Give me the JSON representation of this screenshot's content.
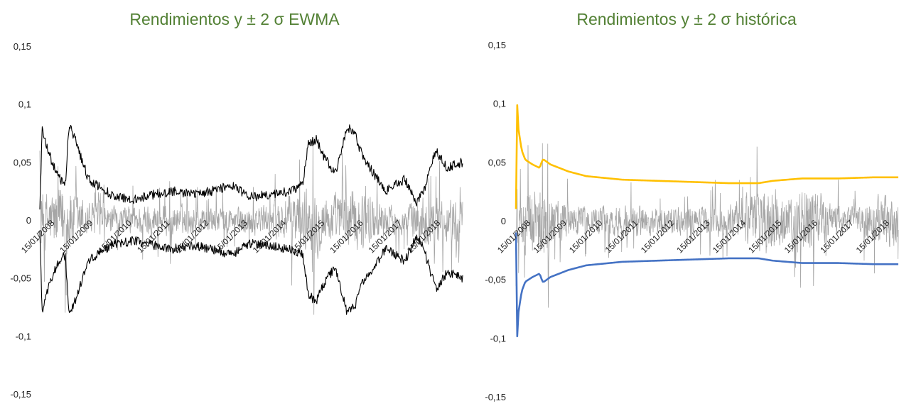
{
  "chart_data": [
    {
      "type": "line",
      "title": "Rendimientos y ± 2 σ EWMA",
      "y_ticks": [
        "0,15",
        "0,1",
        "0,05",
        "0",
        "-0,05",
        "-0,1",
        "-0,15"
      ],
      "y_tick_values": [
        0.15,
        0.1,
        0.05,
        0,
        -0.05,
        -0.1,
        -0.15
      ],
      "ylim": [
        -0.15,
        0.15
      ],
      "x_ticks": [
        "15/01/2008",
        "15/01/2009",
        "15/01/2010",
        "15/01/2011",
        "15/01/2012",
        "15/01/2013",
        "15/01/2014",
        "15/01/2015",
        "15/01/2016",
        "15/01/2017",
        "15/01/2018"
      ],
      "x_tick_years": [
        2008.04,
        2009.04,
        2010.04,
        2011.04,
        2012.04,
        2013.04,
        2014.04,
        2015.04,
        2016.04,
        2017.04,
        2018.04
      ],
      "xlim": [
        2008.04,
        2019.0
      ],
      "grid": false,
      "series": [
        {
          "role": "returns",
          "color": "#a6a6a6",
          "envelope": {
            "x": [
              2008.04,
              2008.3,
              2008.75,
              2009.2,
              2010.0,
              2011.0,
              2012.0,
              2013.0,
              2014.0,
              2014.9,
              2015.2,
              2015.6,
              2016.0,
              2016.5,
              2017.0,
              2017.5,
              2018.0,
              2018.5,
              2019.0
            ],
            "amp": [
              0.05,
              0.045,
              0.06,
              0.03,
              0.02,
              0.025,
              0.022,
              0.02,
              0.025,
              0.05,
              0.055,
              0.035,
              0.055,
              0.04,
              0.025,
              0.02,
              0.04,
              0.035,
              0.035
            ]
          }
        },
        {
          "role": "upper_2sigma_ewma",
          "color": "#000000",
          "x": [
            2008.04,
            2008.1,
            2008.3,
            2008.5,
            2008.7,
            2008.8,
            2009.0,
            2009.3,
            2009.6,
            2010.0,
            2010.5,
            2011.0,
            2011.5,
            2012.0,
            2012.5,
            2013.0,
            2013.5,
            2014.0,
            2014.5,
            2014.85,
            2015.0,
            2015.2,
            2015.4,
            2015.7,
            2016.0,
            2016.2,
            2016.4,
            2016.6,
            2017.0,
            2017.5,
            2017.8,
            2018.0,
            2018.3,
            2018.6,
            2019.0
          ],
          "y": [
            0.008,
            0.078,
            0.055,
            0.038,
            0.03,
            0.083,
            0.065,
            0.035,
            0.028,
            0.02,
            0.018,
            0.022,
            0.025,
            0.022,
            0.025,
            0.03,
            0.02,
            0.022,
            0.025,
            0.03,
            0.065,
            0.07,
            0.055,
            0.04,
            0.08,
            0.075,
            0.055,
            0.045,
            0.025,
            0.035,
            0.015,
            0.025,
            0.06,
            0.045,
            0.05
          ]
        },
        {
          "role": "lower_2sigma_ewma",
          "color": "#000000",
          "x": [
            2008.04,
            2008.1,
            2008.3,
            2008.5,
            2008.7,
            2008.8,
            2009.0,
            2009.3,
            2009.6,
            2010.0,
            2010.5,
            2011.0,
            2011.5,
            2012.0,
            2012.5,
            2013.0,
            2013.5,
            2014.0,
            2014.5,
            2014.85,
            2015.0,
            2015.2,
            2015.4,
            2015.7,
            2016.0,
            2016.2,
            2016.4,
            2016.6,
            2017.0,
            2017.5,
            2017.8,
            2018.0,
            2018.3,
            2018.6,
            2019.0
          ],
          "y": [
            -0.008,
            -0.078,
            -0.055,
            -0.038,
            -0.03,
            -0.083,
            -0.065,
            -0.035,
            -0.028,
            -0.02,
            -0.018,
            -0.022,
            -0.025,
            -0.022,
            -0.025,
            -0.03,
            -0.02,
            -0.022,
            -0.025,
            -0.03,
            -0.065,
            -0.07,
            -0.055,
            -0.04,
            -0.08,
            -0.075,
            -0.055,
            -0.045,
            -0.025,
            -0.035,
            -0.015,
            -0.025,
            -0.06,
            -0.045,
            -0.05
          ]
        }
      ]
    },
    {
      "type": "line",
      "title": "Rendimientos y ± 2 σ histórica",
      "y_ticks": [
        "0,15",
        "0,1",
        "0,05",
        "0",
        "-0,05",
        "-0,1",
        "-0,15"
      ],
      "y_tick_values": [
        0.15,
        0.1,
        0.05,
        0,
        -0.05,
        -0.1,
        -0.15
      ],
      "ylim": [
        -0.15,
        0.15
      ],
      "x_ticks": [
        "15/01/2008",
        "15/01/2009",
        "15/01/2010",
        "15/01/2011",
        "15/01/2012",
        "15/01/2013",
        "15/01/2014",
        "15/01/2015",
        "15/01/2016",
        "15/01/2017",
        "15/01/2018"
      ],
      "x_tick_years": [
        2008.04,
        2009.04,
        2010.04,
        2011.04,
        2012.04,
        2013.04,
        2014.04,
        2015.04,
        2016.04,
        2017.04,
        2018.04
      ],
      "xlim": [
        2008.04,
        2018.7
      ],
      "grid": false,
      "series": [
        {
          "role": "returns",
          "color": "#a6a6a6",
          "envelope": {
            "x": [
              2008.04,
              2008.3,
              2008.75,
              2009.2,
              2010.0,
              2011.0,
              2012.0,
              2013.0,
              2014.0,
              2014.9,
              2015.2,
              2015.6,
              2016.0,
              2016.5,
              2017.0,
              2017.5,
              2018.0,
              2018.7
            ],
            "amp": [
              0.05,
              0.045,
              0.06,
              0.03,
              0.02,
              0.025,
              0.022,
              0.02,
              0.025,
              0.05,
              0.055,
              0.035,
              0.055,
              0.04,
              0.025,
              0.02,
              0.04,
              0.035
            ]
          }
        },
        {
          "role": "upper_2sigma_historica",
          "color": "#ffc000",
          "x": [
            2008.04,
            2008.05,
            2008.1,
            2008.2,
            2008.3,
            2008.5,
            2008.7,
            2008.78,
            2008.82,
            2009.0,
            2009.5,
            2010.0,
            2011.0,
            2012.0,
            2013.0,
            2014.0,
            2014.8,
            2015.2,
            2016.0,
            2017.0,
            2018.0,
            2018.7
          ],
          "y": [
            0.01,
            0.118,
            0.08,
            0.06,
            0.052,
            0.048,
            0.045,
            0.052,
            0.052,
            0.048,
            0.042,
            0.038,
            0.035,
            0.034,
            0.033,
            0.032,
            0.032,
            0.034,
            0.036,
            0.036,
            0.037,
            0.037
          ]
        },
        {
          "role": "lower_2sigma_historica",
          "color": "#4472c4",
          "x": [
            2008.04,
            2008.05,
            2008.1,
            2008.2,
            2008.3,
            2008.5,
            2008.7,
            2008.78,
            2008.82,
            2009.0,
            2009.5,
            2010.0,
            2011.0,
            2012.0,
            2013.0,
            2014.0,
            2014.8,
            2015.2,
            2016.0,
            2017.0,
            2018.0,
            2018.7
          ],
          "y": [
            -0.01,
            -0.118,
            -0.08,
            -0.06,
            -0.052,
            -0.048,
            -0.045,
            -0.052,
            -0.052,
            -0.048,
            -0.042,
            -0.038,
            -0.035,
            -0.034,
            -0.033,
            -0.032,
            -0.032,
            -0.034,
            -0.036,
            -0.036,
            -0.037,
            -0.037
          ]
        }
      ]
    }
  ]
}
